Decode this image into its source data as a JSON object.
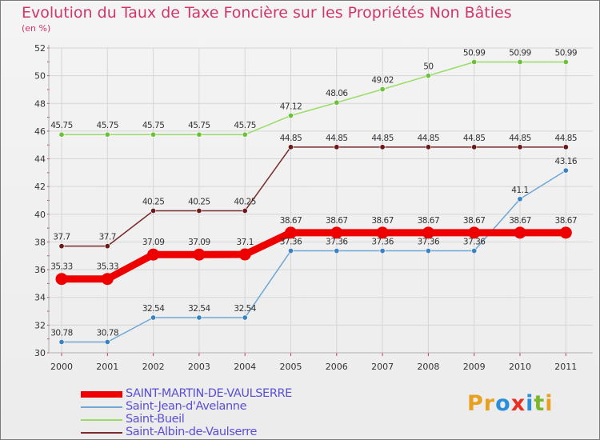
{
  "title": "Evolution du Taux de Taxe Foncière sur les Propriétés Non Bâties",
  "unit_label": "(en %)",
  "logo": {
    "text": "Proxiti",
    "letters": [
      "P",
      "r",
      "o",
      "x",
      "i",
      "t",
      "i"
    ],
    "colors": [
      "#e8a020",
      "#e8a020",
      "#2a8fd8",
      "#e83020",
      "#2a8fd8",
      "#7ab82a",
      "#e8a020"
    ]
  },
  "chart_data": {
    "type": "line",
    "title": "Evolution du Taux de Taxe Foncière sur les Propriétés Non Bâties",
    "ylabel": "(en %)",
    "xlabel": "",
    "x": [
      "2000",
      "2001",
      "2002",
      "2003",
      "2004",
      "2005",
      "2006",
      "2007",
      "2008",
      "2009",
      "2010",
      "2011"
    ],
    "ylim": [
      30,
      52
    ],
    "yticks": [
      30,
      32,
      34,
      36,
      38,
      40,
      42,
      44,
      46,
      48,
      50,
      52
    ],
    "grid": true,
    "legend": "bottom-left",
    "series": [
      {
        "name": "SAINT-MARTIN-DE-VAULSERRE",
        "color": "#ee0000",
        "marker": "#ee0000",
        "bold": true,
        "values": [
          35.33,
          35.33,
          37.09,
          37.09,
          37.1,
          38.67,
          38.67,
          38.67,
          38.67,
          38.67,
          38.67,
          38.67
        ],
        "labels": [
          "35.33",
          "35.33",
          "37.09",
          "37.09",
          "37.1",
          "38.67",
          "38.67",
          "38.67",
          "38.67",
          "38.67",
          "38.67",
          "38.67"
        ]
      },
      {
        "name": "Saint-Jean-d'Avelanne",
        "color": "#6fa6d6",
        "marker": "#3b82c4",
        "bold": false,
        "values": [
          30.78,
          30.78,
          32.54,
          32.54,
          32.54,
          37.36,
          37.36,
          37.36,
          37.36,
          37.36,
          41.1,
          43.16
        ],
        "labels": [
          "30.78",
          "30.78",
          "32.54",
          "32.54",
          "32.54",
          "37.36",
          "37.36",
          "37.36",
          "37.36",
          "37.36",
          "41.1",
          "43.16"
        ]
      },
      {
        "name": "Saint-Bueil",
        "color": "#99dd66",
        "marker": "#6cc03a",
        "bold": false,
        "values": [
          45.75,
          45.75,
          45.75,
          45.75,
          45.75,
          47.12,
          48.06,
          49.02,
          50,
          50.99,
          50.99,
          50.99
        ],
        "labels": [
          "45.75",
          "45.75",
          "45.75",
          "45.75",
          "45.75",
          "47.12",
          "48.06",
          "49.02",
          "50",
          "50.99",
          "50.99",
          "50.99"
        ]
      },
      {
        "name": "Saint-Albin-de-Vaulserre",
        "color": "#7a2a2a",
        "marker": "#6a1a1a",
        "bold": false,
        "values": [
          37.7,
          37.7,
          40.25,
          40.25,
          40.25,
          44.85,
          44.85,
          44.85,
          44.85,
          44.85,
          44.85,
          44.85
        ],
        "labels": [
          "37.7",
          "37.7",
          "40.25",
          "40.25",
          "40.25",
          "44.85",
          "44.85",
          "44.85",
          "44.85",
          "44.85",
          "44.85",
          "44.85"
        ]
      }
    ]
  }
}
